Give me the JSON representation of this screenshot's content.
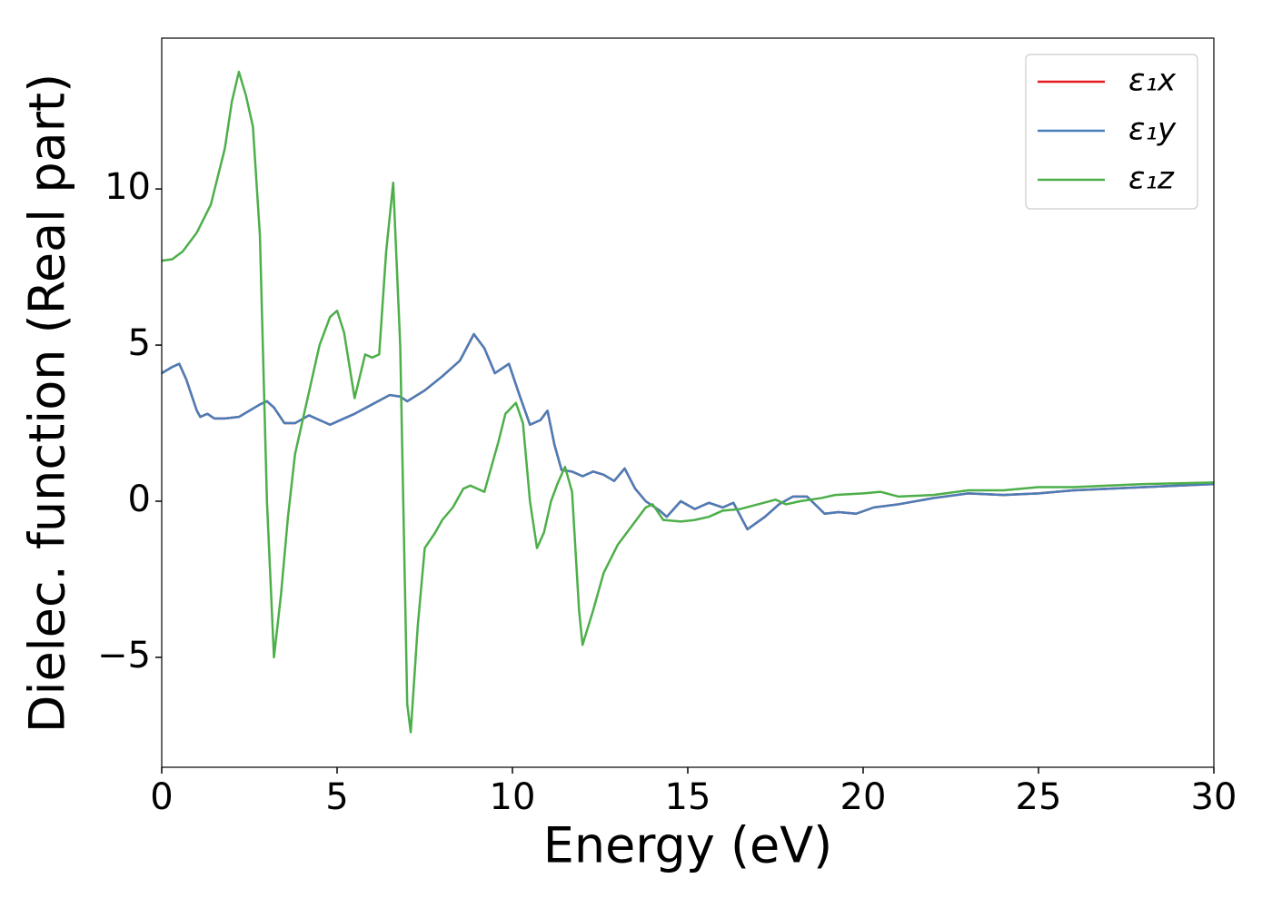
{
  "chart_data": {
    "type": "line",
    "xlabel": "Energy (eV)",
    "ylabel": "Dielec. function (Real part)",
    "xlim": [
      0,
      30
    ],
    "ylim": [
      -8.52,
      14.83
    ],
    "xticks": [
      0,
      5,
      10,
      15,
      20,
      25,
      30
    ],
    "yticks": [
      {
        "value": -5,
        "label": "−5"
      },
      0,
      5,
      10
    ],
    "legend": "upper right",
    "series": [
      {
        "name": "ε₁x",
        "color": "#e41a1c",
        "x": [
          0,
          0.3,
          0.5,
          0.7,
          1.0,
          1.1,
          1.3,
          1.5,
          1.8,
          2.2,
          2.5,
          2.8,
          3.0,
          3.2,
          3.5,
          3.8,
          4.2,
          4.5,
          4.8,
          5.0,
          5.5,
          6.0,
          6.5,
          6.8,
          7.0,
          7.5,
          8.0,
          8.5,
          8.9,
          9.2,
          9.5,
          9.9,
          10.2,
          10.5,
          10.8,
          11.0,
          11.2,
          11.4,
          11.7,
          12.0,
          12.3,
          12.6,
          12.9,
          13.2,
          13.5,
          13.8,
          14.2,
          14.4,
          14.8,
          15.2,
          15.6,
          16.0,
          16.3,
          16.7,
          17.2,
          17.6,
          18.0,
          18.4,
          18.9,
          19.3,
          19.8,
          20.3,
          21.0,
          22.0,
          23.0,
          24.0,
          25.0,
          26.0,
          28.0,
          30.0
        ],
        "values": [
          4.1,
          4.3,
          4.4,
          3.9,
          2.9,
          2.7,
          2.8,
          2.65,
          2.65,
          2.7,
          2.9,
          3.1,
          3.2,
          3.0,
          2.5,
          2.5,
          2.75,
          2.6,
          2.45,
          2.55,
          2.8,
          3.1,
          3.4,
          3.35,
          3.2,
          3.55,
          4.0,
          4.5,
          5.35,
          4.9,
          4.1,
          4.4,
          3.4,
          2.45,
          2.6,
          2.9,
          1.8,
          1.0,
          0.95,
          0.8,
          0.95,
          0.85,
          0.65,
          1.05,
          0.4,
          0.0,
          -0.3,
          -0.5,
          0.0,
          -0.25,
          -0.05,
          -0.2,
          -0.05,
          -0.9,
          -0.5,
          -0.1,
          0.15,
          0.15,
          -0.4,
          -0.35,
          -0.4,
          -0.2,
          -0.1,
          0.1,
          0.25,
          0.2,
          0.25,
          0.35,
          0.45,
          0.55
        ]
      },
      {
        "name": "ε₁y",
        "color": "#4a7eb8",
        "x": [
          0,
          0.3,
          0.5,
          0.7,
          1.0,
          1.1,
          1.3,
          1.5,
          1.8,
          2.2,
          2.5,
          2.8,
          3.0,
          3.2,
          3.5,
          3.8,
          4.2,
          4.5,
          4.8,
          5.0,
          5.5,
          6.0,
          6.5,
          6.8,
          7.0,
          7.5,
          8.0,
          8.5,
          8.9,
          9.2,
          9.5,
          9.9,
          10.2,
          10.5,
          10.8,
          11.0,
          11.2,
          11.4,
          11.7,
          12.0,
          12.3,
          12.6,
          12.9,
          13.2,
          13.5,
          13.8,
          14.2,
          14.4,
          14.8,
          15.2,
          15.6,
          16.0,
          16.3,
          16.7,
          17.2,
          17.6,
          18.0,
          18.4,
          18.9,
          19.3,
          19.8,
          20.3,
          21.0,
          22.0,
          23.0,
          24.0,
          25.0,
          26.0,
          28.0,
          30.0
        ],
        "values": [
          4.1,
          4.3,
          4.4,
          3.9,
          2.9,
          2.7,
          2.8,
          2.65,
          2.65,
          2.7,
          2.9,
          3.1,
          3.2,
          3.0,
          2.5,
          2.5,
          2.75,
          2.6,
          2.45,
          2.55,
          2.8,
          3.1,
          3.4,
          3.35,
          3.2,
          3.55,
          4.0,
          4.5,
          5.35,
          4.9,
          4.1,
          4.4,
          3.4,
          2.45,
          2.6,
          2.9,
          1.8,
          1.0,
          0.95,
          0.8,
          0.95,
          0.85,
          0.65,
          1.05,
          0.4,
          0.0,
          -0.3,
          -0.5,
          0.0,
          -0.25,
          -0.05,
          -0.2,
          -0.05,
          -0.9,
          -0.5,
          -0.1,
          0.15,
          0.15,
          -0.4,
          -0.35,
          -0.4,
          -0.2,
          -0.1,
          0.1,
          0.25,
          0.2,
          0.25,
          0.35,
          0.45,
          0.55
        ]
      },
      {
        "name": "ε₁z",
        "color": "#4daf4a",
        "x": [
          0,
          0.3,
          0.6,
          1.0,
          1.4,
          1.8,
          2.0,
          2.2,
          2.4,
          2.6,
          2.8,
          3.0,
          3.2,
          3.4,
          3.6,
          3.8,
          4.2,
          4.5,
          4.8,
          5.0,
          5.2,
          5.5,
          5.8,
          6.0,
          6.2,
          6.4,
          6.6,
          6.8,
          7.0,
          7.1,
          7.3,
          7.5,
          7.8,
          8.0,
          8.3,
          8.6,
          8.8,
          9.0,
          9.2,
          9.6,
          9.8,
          10.1,
          10.3,
          10.5,
          10.7,
          10.9,
          11.1,
          11.3,
          11.5,
          11.7,
          11.9,
          12.0,
          12.3,
          12.6,
          13.0,
          13.4,
          13.8,
          14.0,
          14.3,
          14.8,
          15.2,
          15.6,
          16.0,
          16.5,
          17.0,
          17.5,
          17.8,
          18.2,
          18.8,
          19.2,
          20.0,
          20.5,
          21.0,
          22.0,
          23.0,
          24.0,
          25.0,
          26.0,
          27.0,
          28.0,
          30.0
        ],
        "values": [
          7.7,
          7.75,
          8.0,
          8.6,
          9.5,
          11.3,
          12.8,
          13.75,
          13.0,
          12.0,
          8.5,
          0.0,
          -5.0,
          -3.0,
          -0.5,
          1.5,
          3.5,
          5.0,
          5.9,
          6.1,
          5.4,
          3.3,
          4.7,
          4.6,
          4.7,
          8.0,
          10.2,
          5.0,
          -6.5,
          -7.4,
          -4.0,
          -1.5,
          -1.0,
          -0.6,
          -0.2,
          0.4,
          0.5,
          0.4,
          0.3,
          1.9,
          2.8,
          3.15,
          2.5,
          0.0,
          -1.5,
          -1.0,
          0.0,
          0.6,
          1.1,
          0.3,
          -3.5,
          -4.6,
          -3.5,
          -2.3,
          -1.4,
          -0.8,
          -0.2,
          -0.1,
          -0.6,
          -0.65,
          -0.6,
          -0.5,
          -0.3,
          -0.25,
          -0.1,
          0.05,
          -0.1,
          0.0,
          0.1,
          0.2,
          0.25,
          0.3,
          0.15,
          0.2,
          0.35,
          0.35,
          0.45,
          0.45,
          0.5,
          0.55,
          0.6
        ]
      }
    ]
  }
}
